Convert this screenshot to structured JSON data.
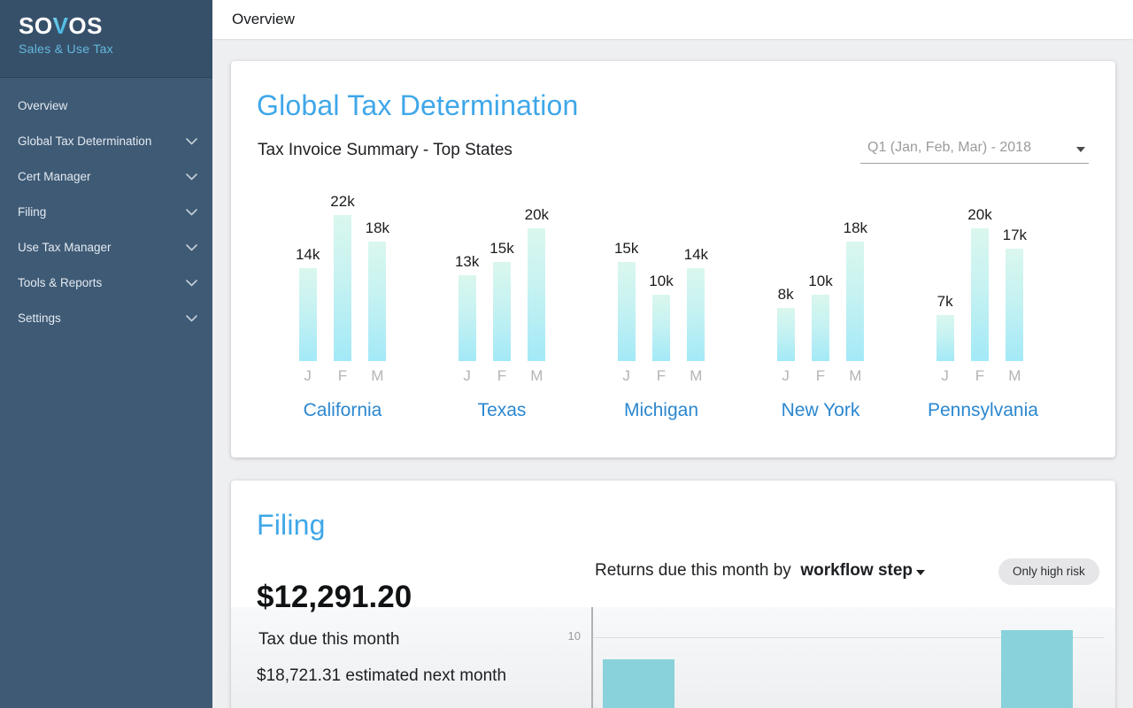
{
  "sidebar": {
    "logo": {
      "pre": "SO",
      "v": "V",
      "post": "OS",
      "subtitle": "Sales & Use Tax"
    },
    "items": [
      {
        "label": "Overview",
        "expandable": false
      },
      {
        "label": "Global Tax Determination",
        "expandable": true
      },
      {
        "label": "Cert Manager",
        "expandable": true
      },
      {
        "label": "Filing",
        "expandable": true
      },
      {
        "label": "Use Tax Manager",
        "expandable": true
      },
      {
        "label": "Tools & Reports",
        "expandable": true
      },
      {
        "label": "Settings",
        "expandable": true
      }
    ]
  },
  "topbar": {
    "title": "Overview"
  },
  "gtd_card": {
    "title": "Global Tax Determination",
    "subtitle": "Tax Invoice Summary - Top States",
    "period_selector": {
      "value": "Q1 (Jan, Feb, Mar) - 2018"
    }
  },
  "filing_card": {
    "title": "Filing",
    "tax_due": "$12,291.20",
    "tax_due_label": "Tax due this month",
    "estimate": "$18,721.31 estimated next month",
    "returns_header_prefix": "Returns due this month by",
    "returns_grouping": "workflow step",
    "high_risk_button": "Only high risk"
  },
  "chart_data": [
    {
      "type": "bar",
      "title": "Tax Invoice Summary - Top States",
      "period": "Q1 (Jan, Feb, Mar) - 2018",
      "categories": [
        "J",
        "F",
        "M"
      ],
      "unit": "k",
      "series": [
        {
          "name": "California",
          "values": [
            14,
            22,
            18
          ]
        },
        {
          "name": "Texas",
          "values": [
            13,
            15,
            20
          ]
        },
        {
          "name": "Michigan",
          "values": [
            15,
            10,
            14
          ]
        },
        {
          "name": "New York",
          "values": [
            8,
            10,
            18
          ]
        },
        {
          "name": "Pennsylvania",
          "values": [
            7,
            20,
            17
          ]
        }
      ],
      "ylim": [
        0,
        22
      ],
      "legend": "none",
      "grid": false
    },
    {
      "type": "bar",
      "title": "Returns due this month by workflow step",
      "y_ticks": [
        10
      ],
      "bars": [
        {
          "value": 7
        },
        {
          "value": 11
        }
      ],
      "clipped_at_bottom": true,
      "grid": true
    }
  ],
  "colors": {
    "sidebar": "#3e5a75",
    "sidebar_header": "#37506a",
    "logo_accent": "#45bee6",
    "heading_blue": "#3fa7e9",
    "state_blue": "#2b87cf",
    "bar_gradient_top": "#daf7ee",
    "bar_gradient_bottom": "#a3e9f7",
    "workflow_bar_teal": "#89d2db",
    "page_bg": "#eeeff1"
  }
}
